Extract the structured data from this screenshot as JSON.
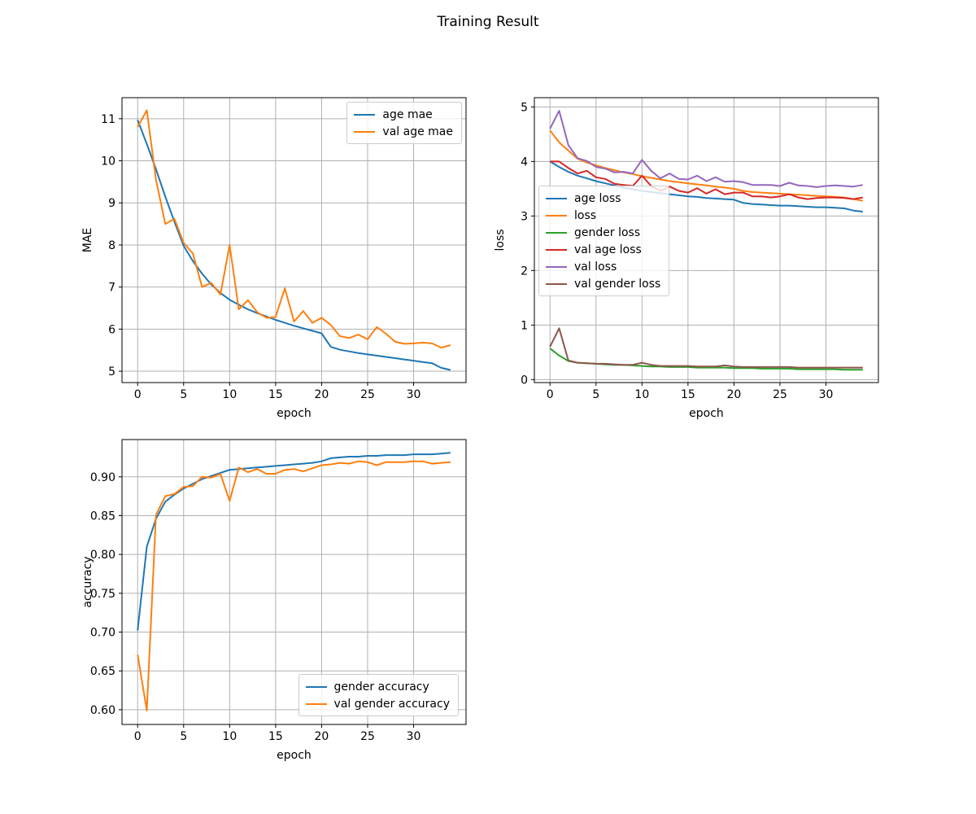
{
  "figure_title": "Training Result",
  "style": {
    "background": "#ffffff",
    "grid_color": "#b0b0b0",
    "spine_color": "#000000",
    "legend_border": "#cccccc"
  },
  "epochs": [
    0,
    1,
    2,
    3,
    4,
    5,
    6,
    7,
    8,
    9,
    10,
    11,
    12,
    13,
    14,
    15,
    16,
    17,
    18,
    19,
    20,
    21,
    22,
    23,
    24,
    25,
    26,
    27,
    28,
    29,
    30,
    31,
    32,
    33,
    34
  ],
  "chart_data": [
    {
      "id": "mae",
      "type": "line",
      "title": "",
      "xlabel": "epoch",
      "ylabel": "MAE",
      "xlim": [
        -1.7,
        35.7
      ],
      "ylim": [
        4.73,
        11.5
      ],
      "x_ticks": [
        0,
        5,
        10,
        15,
        20,
        25,
        30
      ],
      "x_tick_labels": [
        "0",
        "5",
        "10",
        "15",
        "20",
        "25",
        "30"
      ],
      "y_ticks": [
        5,
        6,
        7,
        8,
        9,
        10,
        11
      ],
      "y_tick_labels": [
        "5",
        "6",
        "7",
        "8",
        "9",
        "10",
        "11"
      ],
      "grid": true,
      "legend_loc": "upper right",
      "series": [
        {
          "name": "age mae",
          "color": "#1f77b4",
          "values": [
            10.97,
            10.4,
            9.8,
            9.15,
            8.55,
            7.98,
            7.62,
            7.32,
            7.06,
            6.86,
            6.7,
            6.58,
            6.47,
            6.38,
            6.3,
            6.22,
            6.15,
            6.08,
            6.02,
            5.96,
            5.9,
            5.58,
            5.51,
            5.47,
            5.43,
            5.4,
            5.37,
            5.34,
            5.31,
            5.28,
            5.25,
            5.22,
            5.19,
            5.08,
            5.03
          ]
        },
        {
          "name": "val age mae",
          "color": "#ff7f0e",
          "values": [
            10.8,
            11.2,
            9.55,
            8.5,
            8.62,
            8.05,
            7.8,
            7.0,
            7.1,
            6.82,
            8.0,
            6.47,
            6.69,
            6.4,
            6.27,
            6.29,
            6.97,
            6.18,
            6.43,
            6.15,
            6.27,
            6.1,
            5.83,
            5.79,
            5.87,
            5.76,
            6.05,
            5.89,
            5.7,
            5.65,
            5.66,
            5.68,
            5.66,
            5.56,
            5.62
          ]
        }
      ]
    },
    {
      "id": "loss",
      "type": "line",
      "title": "",
      "xlabel": "epoch",
      "ylabel": "loss",
      "xlim": [
        -1.7,
        35.7
      ],
      "ylim": [
        -0.055,
        5.17
      ],
      "x_ticks": [
        0,
        5,
        10,
        15,
        20,
        25,
        30
      ],
      "x_tick_labels": [
        "0",
        "5",
        "10",
        "15",
        "20",
        "25",
        "30"
      ],
      "y_ticks": [
        0,
        1,
        2,
        3,
        4,
        5
      ],
      "y_tick_labels": [
        "0",
        "1",
        "2",
        "3",
        "4",
        "5"
      ],
      "grid": true,
      "legend_loc": "center left",
      "series": [
        {
          "name": "age loss",
          "color": "#1f77b4",
          "values": [
            4.0,
            3.9,
            3.81,
            3.74,
            3.69,
            3.64,
            3.6,
            3.56,
            3.52,
            3.49,
            3.46,
            3.44,
            3.42,
            3.4,
            3.38,
            3.36,
            3.35,
            3.33,
            3.32,
            3.31,
            3.3,
            3.24,
            3.22,
            3.21,
            3.2,
            3.19,
            3.19,
            3.18,
            3.17,
            3.16,
            3.16,
            3.15,
            3.14,
            3.1,
            3.08
          ]
        },
        {
          "name": "loss",
          "color": "#ff7f0e",
          "values": [
            4.57,
            4.35,
            4.2,
            4.05,
            3.98,
            3.93,
            3.88,
            3.84,
            3.8,
            3.77,
            3.73,
            3.7,
            3.67,
            3.64,
            3.62,
            3.6,
            3.58,
            3.56,
            3.54,
            3.52,
            3.5,
            3.46,
            3.44,
            3.43,
            3.42,
            3.41,
            3.4,
            3.39,
            3.38,
            3.37,
            3.36,
            3.35,
            3.34,
            3.31,
            3.28
          ]
        },
        {
          "name": "gender loss",
          "color": "#2ca02c",
          "values": [
            0.57,
            0.44,
            0.34,
            0.31,
            0.3,
            0.29,
            0.28,
            0.27,
            0.27,
            0.26,
            0.25,
            0.24,
            0.24,
            0.23,
            0.23,
            0.23,
            0.22,
            0.22,
            0.22,
            0.22,
            0.21,
            0.21,
            0.21,
            0.2,
            0.2,
            0.2,
            0.2,
            0.19,
            0.19,
            0.19,
            0.19,
            0.19,
            0.18,
            0.18,
            0.18
          ]
        },
        {
          "name": "val age loss",
          "color": "#d62728",
          "values": [
            4.0,
            4.0,
            3.88,
            3.78,
            3.83,
            3.71,
            3.68,
            3.59,
            3.57,
            3.55,
            3.74,
            3.55,
            3.46,
            3.54,
            3.46,
            3.43,
            3.51,
            3.41,
            3.49,
            3.4,
            3.43,
            3.43,
            3.36,
            3.36,
            3.34,
            3.36,
            3.4,
            3.34,
            3.31,
            3.33,
            3.34,
            3.34,
            3.33,
            3.31,
            3.34
          ]
        },
        {
          "name": "val loss",
          "color": "#9467bd",
          "values": [
            4.6,
            4.93,
            4.3,
            4.06,
            4.01,
            3.9,
            3.87,
            3.8,
            3.81,
            3.78,
            4.03,
            3.83,
            3.69,
            3.78,
            3.68,
            3.67,
            3.74,
            3.64,
            3.71,
            3.63,
            3.64,
            3.62,
            3.57,
            3.57,
            3.57,
            3.55,
            3.61,
            3.56,
            3.55,
            3.53,
            3.55,
            3.56,
            3.55,
            3.54,
            3.57
          ]
        },
        {
          "name": "val gender loss",
          "color": "#8c564b",
          "values": [
            0.6,
            0.94,
            0.35,
            0.31,
            0.3,
            0.29,
            0.29,
            0.28,
            0.27,
            0.27,
            0.31,
            0.27,
            0.25,
            0.25,
            0.25,
            0.25,
            0.24,
            0.24,
            0.24,
            0.26,
            0.24,
            0.23,
            0.23,
            0.23,
            0.23,
            0.23,
            0.23,
            0.22,
            0.22,
            0.22,
            0.22,
            0.22,
            0.22,
            0.22,
            0.22
          ]
        }
      ]
    },
    {
      "id": "accuracy",
      "type": "line",
      "title": "",
      "xlabel": "epoch",
      "ylabel": "accuracy",
      "xlim": [
        -1.7,
        35.7
      ],
      "ylim": [
        0.581,
        0.948
      ],
      "x_ticks": [
        0,
        5,
        10,
        15,
        20,
        25,
        30
      ],
      "x_tick_labels": [
        "0",
        "5",
        "10",
        "15",
        "20",
        "25",
        "30"
      ],
      "y_ticks": [
        0.6,
        0.65,
        0.7,
        0.75,
        0.8,
        0.85,
        0.9
      ],
      "y_tick_labels": [
        "0.60",
        "0.65",
        "0.70",
        "0.75",
        "0.80",
        "0.85",
        "0.90"
      ],
      "grid": true,
      "legend_loc": "lower right",
      "series": [
        {
          "name": "gender accuracy",
          "color": "#1f77b4",
          "values": [
            0.702,
            0.81,
            0.846,
            0.868,
            0.877,
            0.885,
            0.891,
            0.897,
            0.901,
            0.905,
            0.909,
            0.91,
            0.911,
            0.912,
            0.913,
            0.914,
            0.915,
            0.916,
            0.917,
            0.918,
            0.92,
            0.924,
            0.925,
            0.926,
            0.926,
            0.927,
            0.927,
            0.928,
            0.928,
            0.928,
            0.929,
            0.929,
            0.929,
            0.93,
            0.931
          ]
        },
        {
          "name": "val gender accuracy",
          "color": "#ff7f0e",
          "values": [
            0.671,
            0.599,
            0.851,
            0.875,
            0.878,
            0.887,
            0.888,
            0.9,
            0.899,
            0.904,
            0.869,
            0.912,
            0.906,
            0.91,
            0.904,
            0.904,
            0.909,
            0.91,
            0.907,
            0.911,
            0.915,
            0.916,
            0.918,
            0.917,
            0.92,
            0.919,
            0.915,
            0.919,
            0.919,
            0.919,
            0.92,
            0.92,
            0.917,
            0.918,
            0.919
          ]
        }
      ]
    }
  ]
}
